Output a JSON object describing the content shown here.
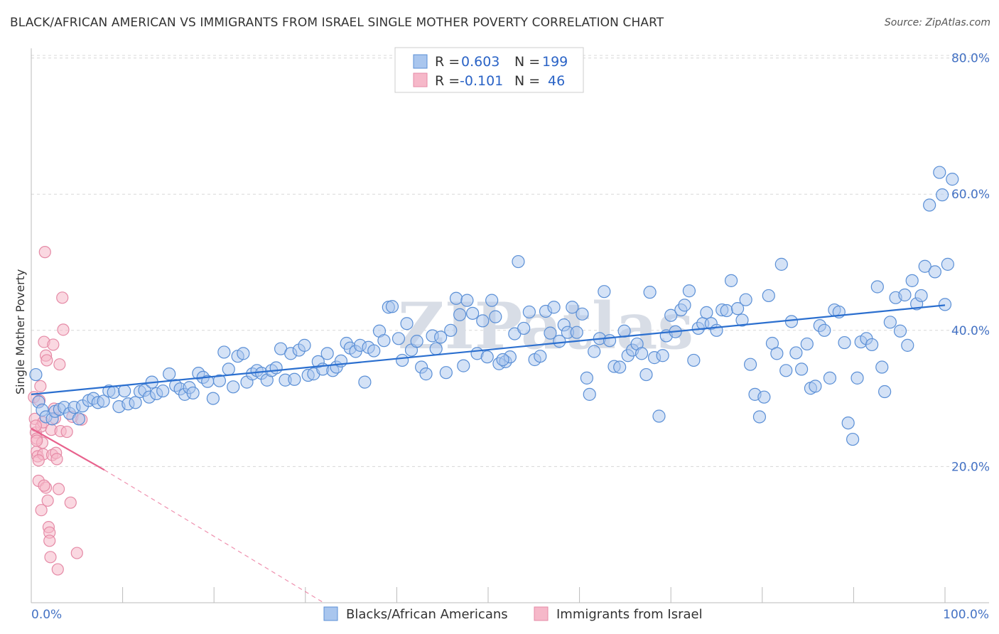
{
  "title": "BLACK/AFRICAN AMERICAN VS IMMIGRANTS FROM ISRAEL SINGLE MOTHER POVERTY CORRELATION CHART",
  "source": "Source: ZipAtlas.com",
  "watermark": "ZIPatlas",
  "colors": {
    "blue_fill": "#a9c6ee",
    "blue_stroke": "#5a8fd6",
    "blue_line": "#2b6fcf",
    "pink_fill": "#f6b8c9",
    "pink_stroke": "#e58aa6",
    "pink_line": "#e8628d",
    "tick_text": "#4472c4",
    "grid": "#d8d8d8"
  },
  "legend": {
    "rows": [
      {
        "r_label": "R =",
        "r_value": "0.603",
        "n_label": "N =",
        "n_value": "199"
      },
      {
        "r_label": "R =",
        "r_value": "-0.101",
        "n_label": "N =",
        "n_value": "46"
      }
    ]
  },
  "bottom_legend": [
    "Blacks/African Americans",
    "Immigrants from Israel"
  ],
  "chart_data": {
    "type": "scatter",
    "title": "BLACK/AFRICAN AMERICAN VS IMMIGRANTS FROM ISRAEL SINGLE MOTHER POVERTY CORRELATION CHART",
    "xlabel": "",
    "ylabel": "Single Mother Poverty",
    "xlim": [
      0,
      100
    ],
    "ylim": [
      0,
      80
    ],
    "x_tick_labels": [
      "0.0%",
      "100.0%"
    ],
    "y_ticks": [
      20,
      40,
      60,
      80
    ],
    "y_tick_labels": [
      "20.0%",
      "40.0%",
      "60.0%",
      "80.0%"
    ],
    "grid": true,
    "legend_position": "top-center",
    "series": [
      {
        "name": "Blacks/African Americans",
        "r": 0.603,
        "n": 199,
        "trend": {
          "x": [
            0,
            100
          ],
          "y": [
            30.6,
            43.7
          ]
        },
        "points": [
          [
            0.5,
            33.5
          ],
          [
            0.8,
            29.5
          ],
          [
            1.2,
            28.3
          ],
          [
            1.6,
            27.3
          ],
          [
            2.3,
            27.0
          ],
          [
            2.6,
            28.1
          ],
          [
            3.1,
            28.4
          ],
          [
            3.6,
            28.7
          ],
          [
            4.2,
            27.8
          ],
          [
            4.7,
            28.7
          ],
          [
            5.2,
            27.0
          ],
          [
            5.6,
            28.9
          ],
          [
            6.3,
            29.7
          ],
          [
            6.8,
            30.0
          ],
          [
            7.3,
            29.4
          ],
          [
            7.9,
            29.6
          ],
          [
            8.5,
            31.1
          ],
          [
            9.0,
            30.9
          ],
          [
            9.6,
            28.8
          ],
          [
            10.2,
            31.1
          ],
          [
            10.6,
            29.2
          ],
          [
            11.4,
            29.4
          ],
          [
            11.9,
            31.0
          ],
          [
            12.4,
            31.2
          ],
          [
            12.9,
            30.2
          ],
          [
            13.2,
            32.4
          ],
          [
            13.7,
            30.7
          ],
          [
            14.4,
            31.1
          ],
          [
            15.1,
            33.6
          ],
          [
            15.8,
            31.9
          ],
          [
            16.3,
            31.4
          ],
          [
            16.8,
            30.6
          ],
          [
            17.3,
            31.6
          ],
          [
            17.7,
            30.8
          ],
          [
            18.3,
            33.7
          ],
          [
            18.8,
            33.1
          ],
          [
            19.3,
            32.5
          ],
          [
            19.9,
            30.0
          ],
          [
            20.6,
            32.6
          ],
          [
            21.1,
            36.8
          ],
          [
            21.6,
            34.3
          ],
          [
            22.1,
            31.7
          ],
          [
            22.6,
            36.2
          ],
          [
            23.2,
            36.6
          ],
          [
            23.6,
            32.4
          ],
          [
            24.2,
            33.6
          ],
          [
            24.7,
            34.1
          ],
          [
            25.2,
            33.7
          ],
          [
            25.8,
            32.7
          ],
          [
            26.3,
            34.1
          ],
          [
            26.8,
            34.5
          ],
          [
            27.3,
            37.3
          ],
          [
            27.8,
            32.7
          ],
          [
            28.4,
            36.6
          ],
          [
            28.8,
            32.8
          ],
          [
            29.3,
            37.1
          ],
          [
            29.9,
            37.8
          ],
          [
            30.3,
            33.4
          ],
          [
            30.9,
            33.6
          ],
          [
            31.4,
            35.4
          ],
          [
            31.9,
            34.3
          ],
          [
            32.4,
            36.6
          ],
          [
            33.0,
            34.1
          ],
          [
            33.4,
            34.6
          ],
          [
            33.9,
            35.5
          ],
          [
            34.5,
            38.1
          ],
          [
            34.9,
            37.4
          ],
          [
            35.5,
            36.9
          ],
          [
            36.0,
            37.8
          ],
          [
            36.5,
            32.4
          ],
          [
            36.9,
            37.5
          ],
          [
            37.5,
            37.0
          ],
          [
            38.1,
            39.9
          ],
          [
            38.6,
            38.5
          ],
          [
            39.1,
            43.4
          ],
          [
            39.5,
            43.5
          ],
          [
            40.2,
            38.8
          ],
          [
            40.6,
            35.6
          ],
          [
            41.1,
            41.0
          ],
          [
            41.6,
            37.1
          ],
          [
            42.2,
            38.4
          ],
          [
            42.7,
            34.6
          ],
          [
            43.2,
            33.6
          ],
          [
            43.9,
            39.2
          ],
          [
            44.3,
            37.3
          ],
          [
            44.8,
            39.0
          ],
          [
            45.4,
            33.8
          ],
          [
            45.9,
            40.0
          ],
          [
            46.5,
            44.7
          ],
          [
            46.9,
            42.3
          ],
          [
            47.3,
            34.8
          ],
          [
            47.7,
            44.4
          ],
          [
            48.3,
            42.5
          ],
          [
            48.8,
            36.6
          ],
          [
            49.4,
            41.4
          ],
          [
            49.9,
            36.1
          ],
          [
            50.4,
            44.4
          ],
          [
            50.8,
            42.0
          ],
          [
            51.2,
            35.1
          ],
          [
            51.9,
            35.4
          ],
          [
            52.4,
            36.1
          ],
          [
            52.9,
            39.5
          ],
          [
            53.3,
            50.1
          ],
          [
            53.9,
            40.3
          ],
          [
            54.5,
            42.7
          ],
          [
            55.1,
            35.7
          ],
          [
            55.7,
            36.2
          ],
          [
            56.3,
            42.8
          ],
          [
            56.8,
            39.6
          ],
          [
            57.2,
            43.4
          ],
          [
            57.8,
            38.4
          ],
          [
            58.3,
            40.8
          ],
          [
            58.7,
            39.7
          ],
          [
            59.2,
            43.4
          ],
          [
            59.7,
            39.7
          ],
          [
            60.3,
            42.4
          ],
          [
            60.8,
            33.0
          ],
          [
            61.1,
            30.6
          ],
          [
            61.6,
            36.9
          ],
          [
            62.2,
            38.8
          ],
          [
            62.7,
            45.7
          ],
          [
            63.3,
            38.5
          ],
          [
            63.8,
            34.7
          ],
          [
            64.4,
            34.6
          ],
          [
            64.9,
            39.9
          ],
          [
            65.3,
            36.3
          ],
          [
            65.8,
            37.1
          ],
          [
            66.3,
            38.0
          ],
          [
            66.8,
            36.6
          ],
          [
            67.3,
            33.5
          ],
          [
            67.7,
            45.6
          ],
          [
            68.2,
            36.0
          ],
          [
            68.7,
            27.4
          ],
          [
            69.1,
            36.3
          ],
          [
            69.5,
            39.2
          ],
          [
            70.0,
            42.2
          ],
          [
            70.5,
            39.8
          ],
          [
            71.1,
            43.0
          ],
          [
            71.5,
            43.7
          ],
          [
            72.0,
            45.8
          ],
          [
            72.5,
            35.6
          ],
          [
            73.0,
            40.3
          ],
          [
            73.5,
            41.0
          ],
          [
            73.9,
            42.6
          ],
          [
            74.4,
            41.0
          ],
          [
            75.0,
            40.0
          ],
          [
            75.6,
            43.0
          ],
          [
            76.1,
            42.9
          ],
          [
            76.6,
            47.3
          ],
          [
            77.3,
            43.2
          ],
          [
            77.8,
            41.5
          ],
          [
            78.2,
            44.5
          ],
          [
            78.7,
            35.0
          ],
          [
            79.2,
            30.6
          ],
          [
            79.7,
            27.3
          ],
          [
            80.2,
            30.2
          ],
          [
            80.7,
            45.1
          ],
          [
            81.1,
            38.1
          ],
          [
            81.6,
            36.6
          ],
          [
            82.1,
            49.7
          ],
          [
            82.6,
            34.1
          ],
          [
            83.2,
            41.3
          ],
          [
            83.7,
            36.7
          ],
          [
            84.3,
            34.3
          ],
          [
            84.9,
            38.0
          ],
          [
            85.3,
            31.5
          ],
          [
            85.8,
            31.8
          ],
          [
            86.3,
            40.7
          ],
          [
            86.8,
            40.0
          ],
          [
            87.4,
            33.0
          ],
          [
            87.9,
            43.0
          ],
          [
            88.4,
            42.7
          ],
          [
            89.0,
            38.2
          ],
          [
            89.4,
            26.4
          ],
          [
            89.9,
            24.0
          ],
          [
            90.4,
            33.0
          ],
          [
            90.8,
            38.3
          ],
          [
            91.4,
            38.8
          ],
          [
            92.0,
            37.9
          ],
          [
            92.6,
            46.4
          ],
          [
            93.1,
            34.6
          ],
          [
            93.4,
            31.0
          ],
          [
            94.0,
            41.2
          ],
          [
            94.6,
            44.8
          ],
          [
            95.1,
            39.9
          ],
          [
            95.6,
            45.2
          ],
          [
            95.9,
            37.8
          ],
          [
            96.4,
            47.3
          ],
          [
            96.9,
            43.9
          ],
          [
            97.4,
            45.1
          ],
          [
            97.8,
            49.4
          ],
          [
            98.3,
            58.4
          ],
          [
            98.9,
            48.6
          ],
          [
            99.4,
            63.2
          ],
          [
            99.7,
            59.9
          ],
          [
            100.0,
            43.8
          ],
          [
            100.3,
            49.7
          ],
          [
            100.8,
            62.2
          ],
          [
            51.6,
            35.7
          ]
        ]
      },
      {
        "name": "Immigrants from Israel",
        "r": -0.101,
        "n": 46,
        "trend": {
          "x": [
            0,
            8
          ],
          "y": [
            25.6,
            19.5
          ],
          "dashed_extension": {
            "x": [
              8,
              32
            ],
            "y": [
              19.5,
              0
            ]
          }
        },
        "points": [
          [
            0.3,
            30.2
          ],
          [
            0.4,
            27.0
          ],
          [
            0.5,
            25.0
          ],
          [
            0.6,
            24.1
          ],
          [
            0.6,
            22.2
          ],
          [
            0.7,
            21.5
          ],
          [
            0.8,
            17.9
          ],
          [
            0.9,
            29.7
          ],
          [
            1.0,
            31.8
          ],
          [
            1.1,
            25.9
          ],
          [
            1.2,
            23.5
          ],
          [
            1.3,
            21.8
          ],
          [
            1.3,
            26.5
          ],
          [
            1.4,
            38.3
          ],
          [
            1.5,
            51.5
          ],
          [
            1.6,
            16.9
          ],
          [
            1.6,
            36.3
          ],
          [
            1.7,
            35.6
          ],
          [
            1.8,
            15.0
          ],
          [
            1.9,
            11.1
          ],
          [
            2.0,
            10.3
          ],
          [
            2.0,
            9.1
          ],
          [
            2.1,
            6.7
          ],
          [
            2.2,
            25.4
          ],
          [
            2.3,
            21.7
          ],
          [
            2.4,
            37.9
          ],
          [
            2.5,
            28.5
          ],
          [
            2.6,
            27.1
          ],
          [
            2.7,
            22.0
          ],
          [
            2.9,
            4.9
          ],
          [
            3.0,
            16.7
          ],
          [
            3.1,
            35.0
          ],
          [
            3.2,
            25.2
          ],
          [
            3.4,
            44.8
          ],
          [
            3.5,
            40.1
          ],
          [
            3.9,
            25.1
          ],
          [
            4.3,
            14.7
          ],
          [
            4.5,
            27.3
          ],
          [
            5.0,
            7.3
          ],
          [
            5.5,
            26.9
          ],
          [
            0.5,
            26.0
          ],
          [
            0.8,
            20.9
          ],
          [
            1.1,
            13.6
          ],
          [
            1.4,
            17.2
          ],
          [
            2.8,
            21.1
          ],
          [
            0.6,
            23.8
          ]
        ]
      }
    ]
  }
}
